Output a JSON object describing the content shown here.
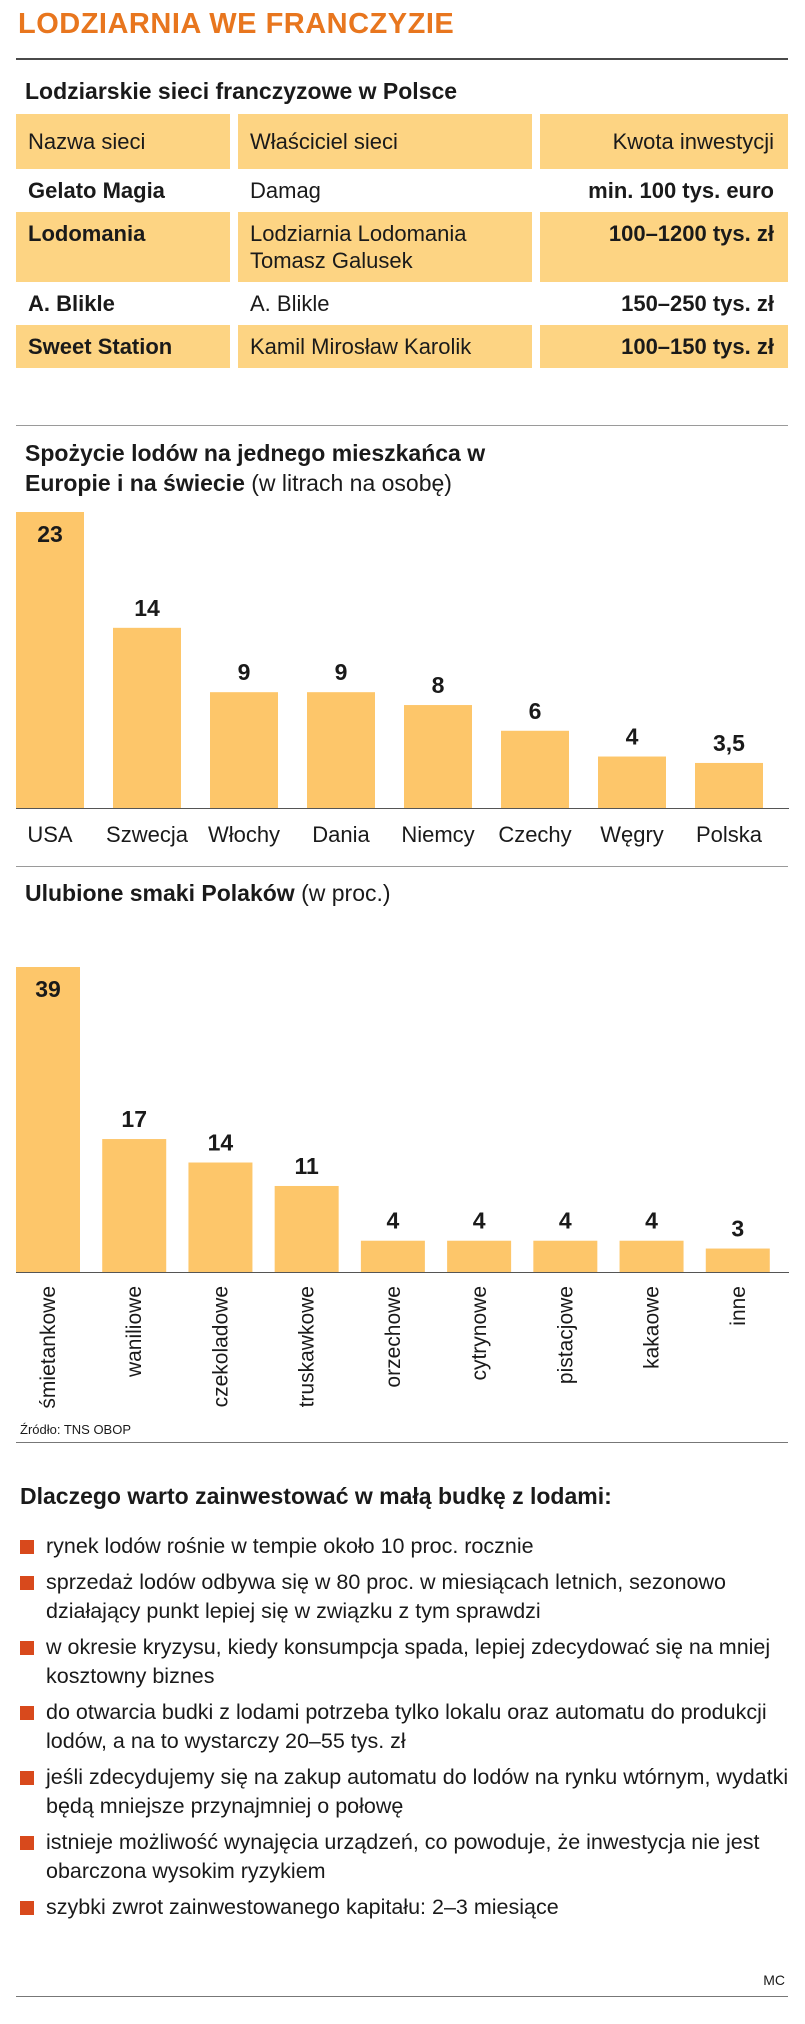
{
  "title": "LODZIARNIA WE FRANCZYZIE",
  "colors": {
    "title": "#e8761e",
    "bar": "#fdc66a",
    "row_fill": "#fdd483",
    "bullet": "#d8491c"
  },
  "table": {
    "heading": "Lodziarskie sieci franczyzowe w Polsce",
    "headers": [
      "Nazwa sieci",
      "Właściciel sieci",
      "Kwota inwestycji"
    ],
    "rows": [
      {
        "name": "Gelato Magia",
        "owner": "Damag",
        "amount": "min. 100 tys. euro"
      },
      {
        "name": "Lodomania",
        "owner": "Lodziarnia Lodomania Tomasz Galusek",
        "amount": "100–1200 tys. zł"
      },
      {
        "name": "A. Blikle",
        "owner": "A. Blikle",
        "amount": "150–250 tys. zł"
      },
      {
        "name": "Sweet Station",
        "owner": "Kamil Mirosław Karolik",
        "amount": "100–150 tys. zł"
      }
    ]
  },
  "chart_data": [
    {
      "type": "bar",
      "title": "Spożycie lodów na jednego mieszkańca w Europie i na świecie",
      "unit": "(w litrach na osobę)",
      "categories": [
        "USA",
        "Szwecja",
        "Włochy",
        "Dania",
        "Niemcy",
        "Czechy",
        "Węgry",
        "Polska"
      ],
      "values": [
        23,
        14,
        9,
        9,
        8,
        6,
        4,
        3.5
      ],
      "value_labels": [
        "23",
        "14",
        "9",
        "9",
        "8",
        "6",
        "4",
        "3,5"
      ],
      "ylim": [
        0,
        23
      ],
      "grid": false,
      "legend": "none"
    },
    {
      "type": "bar",
      "title": "Ulubione smaki Polaków",
      "unit": "(w proc.)",
      "categories": [
        "śmietankowe",
        "waniliowe",
        "czekoladowe",
        "truskawkowe",
        "orzechowe",
        "cytrynowe",
        "pistacjowe",
        "kakaowe",
        "inne"
      ],
      "values": [
        39,
        17,
        14,
        11,
        4,
        4,
        4,
        4,
        3
      ],
      "value_labels": [
        "39",
        "17",
        "14",
        "11",
        "4",
        "4",
        "4",
        "4",
        "3"
      ],
      "ylim": [
        0,
        39
      ],
      "grid": false,
      "legend": "none"
    }
  ],
  "source": "Źródło: TNS OBOP",
  "reasons": {
    "heading": "Dlaczego warto zainwestować w małą budkę z lodami:",
    "items": [
      "rynek lodów rośnie w tempie około 10 proc. rocznie",
      "sprzedaż lodów odbywa się w 80 proc. w miesiącach letnich, sezonowo działający punkt lepiej się w związku z tym sprawdzi",
      "w okresie kryzysu, kiedy konsumpcja spada, lepiej zdecydować się na mniej kosztowny biznes",
      "do otwarcia budki z lodami potrzeba tylko lokalu oraz automatu do produkcji lodów, a na to wystarczy 20–55 tys. zł",
      "jeśli zdecydujemy się na zakup automatu do lodów na rynku wtórnym, wydatki będą mniejsze przynajmniej o połowę",
      "istnieje możliwość wynajęcia urządzeń, co powoduje, że inwestycja nie jest obarczona wysokim ryzykiem",
      "szybki zwrot zainwestowanego kapitału: 2–3 miesiące"
    ]
  },
  "signature": "MC"
}
